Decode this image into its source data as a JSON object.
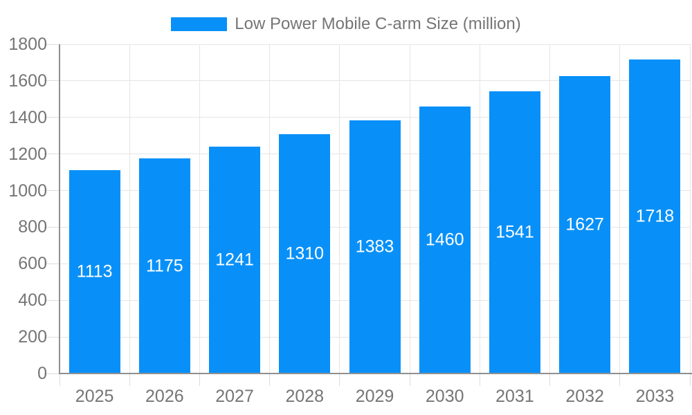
{
  "chart_data": {
    "type": "bar",
    "title": "",
    "legend_label": "Low Power Mobile C-arm Size (million)",
    "legend_position": "top",
    "categories": [
      "2025",
      "2026",
      "2027",
      "2028",
      "2029",
      "2030",
      "2031",
      "2032",
      "2033"
    ],
    "values": [
      1113,
      1175,
      1241,
      1310,
      1383,
      1460,
      1541,
      1627,
      1718
    ],
    "xlabel": "",
    "ylabel": "",
    "ylim": [
      0,
      1800
    ],
    "ytick_step": 200,
    "yticks": [
      0,
      200,
      400,
      600,
      800,
      1000,
      1200,
      1400,
      1600,
      1800
    ],
    "grid": true,
    "value_label_position": "inside-center",
    "colors": {
      "bar": "#0890F8",
      "grid_line": "#e5e5e5",
      "axis_line": "#8f8f8f",
      "tick_line": "#dcdcdc",
      "axis_text": "#757575",
      "legend_text": "#757575",
      "value_text": "#ffffff",
      "background": "#ffffff"
    }
  }
}
